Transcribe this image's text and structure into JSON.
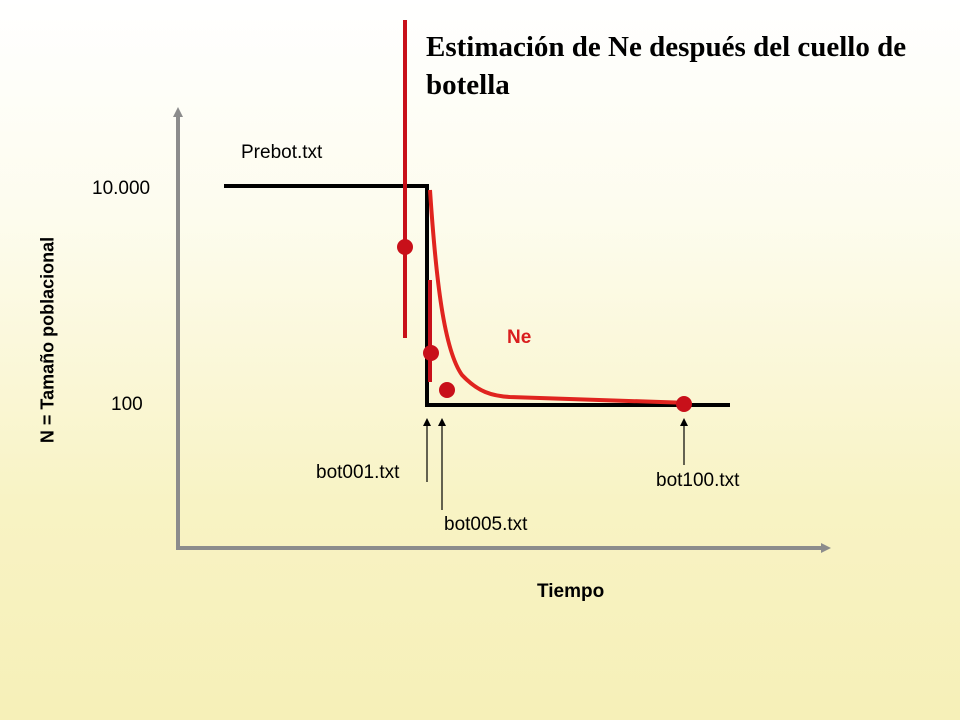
{
  "title": "Estimación de Ne después del cuello de botella",
  "axes": {
    "y_label": "N = Tamaño poblacional",
    "x_label": "Tiempo",
    "y_ticks": [
      "10.000",
      "100"
    ]
  },
  "labels": {
    "prebot": "Prebot.txt",
    "bot001": "bot001.txt",
    "bot005": "bot005.txt",
    "bot100": "bot100.txt",
    "ne": "Ne"
  },
  "colors": {
    "population_line": "#000000",
    "ne_curve": "#e0241f",
    "sample_points": "#c8101a",
    "axes": "#8c8c8c"
  }
}
